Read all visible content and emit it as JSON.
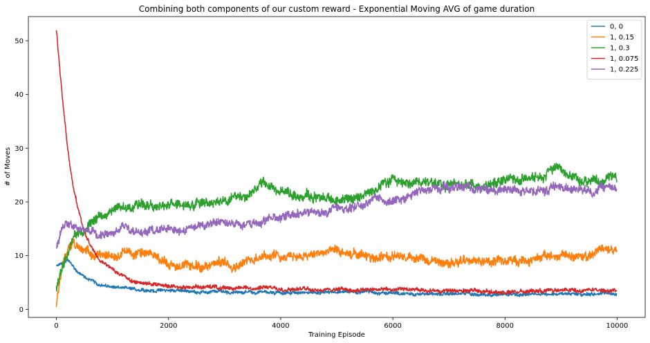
{
  "chart_data": {
    "type": "line",
    "title": "Combining both components of our custom reward - Exponential Moving AVG of game duration",
    "xlabel": "Training Episode",
    "ylabel": "# of Moves",
    "xlim": [
      -500,
      10500
    ],
    "ylim": [
      -1.5,
      54.5
    ],
    "x_ticks": [
      0,
      2000,
      4000,
      6000,
      8000,
      10000
    ],
    "y_ticks": [
      0,
      10,
      20,
      30,
      40,
      50
    ],
    "grid": false,
    "legend_position": "top-right",
    "x": [
      0,
      100,
      200,
      300,
      400,
      500,
      600,
      700,
      800,
      1000,
      1200,
      1500,
      1800,
      2000,
      2500,
      3000,
      3500,
      3700,
      4000,
      4500,
      5000,
      5500,
      5700,
      6000,
      6300,
      6500,
      7000,
      7500,
      8000,
      8500,
      8700,
      8900,
      9200,
      9500,
      9700,
      10000
    ],
    "series": [
      {
        "name": "0, 0",
        "color": "#1f77b4",
        "band": 0.5,
        "values": [
          8.0,
          8.5,
          9.2,
          8.0,
          6.8,
          6.0,
          5.5,
          5.0,
          4.6,
          4.2,
          3.9,
          3.7,
          3.5,
          3.5,
          3.3,
          3.2,
          3.2,
          3.2,
          3.1,
          3.1,
          3.0,
          3.0,
          3.0,
          3.0,
          3.0,
          2.9,
          2.9,
          2.9,
          2.9,
          2.9,
          2.9,
          2.9,
          2.9,
          2.9,
          2.9,
          2.9
        ]
      },
      {
        "name": "1, 0.15",
        "color": "#ff7f0e",
        "band": 1.4,
        "values": [
          1.0,
          8.0,
          11.5,
          12.5,
          11.5,
          11.0,
          10.5,
          10.0,
          10.0,
          10.2,
          10.5,
          10.5,
          9.5,
          8.5,
          8.0,
          8.5,
          9.5,
          10.5,
          10.0,
          10.0,
          10.5,
          9.5,
          10.0,
          9.8,
          9.5,
          9.2,
          9.0,
          9.0,
          9.0,
          9.5,
          10.0,
          10.0,
          10.0,
          9.8,
          11.0,
          11.0
        ]
      },
      {
        "name": "1, 0.3",
        "color": "#2ca02c",
        "band": 1.5,
        "values": [
          4.0,
          8.0,
          11.0,
          13.5,
          15.0,
          14.5,
          16.0,
          17.0,
          17.5,
          18.5,
          19.0,
          19.5,
          19.0,
          19.5,
          19.5,
          20.5,
          21.5,
          23.5,
          21.5,
          21.0,
          20.0,
          21.0,
          22.5,
          24.0,
          23.5,
          24.0,
          23.5,
          23.5,
          23.5,
          24.5,
          25.0,
          27.0,
          25.0,
          24.0,
          23.5,
          24.5
        ]
      },
      {
        "name": "1, 0.075",
        "color": "#d62728",
        "band": 0.6,
        "values": [
          52.0,
          40.0,
          30.0,
          23.0,
          18.0,
          14.5,
          12.0,
          10.5,
          9.0,
          7.5,
          6.0,
          5.0,
          4.6,
          4.5,
          4.3,
          4.1,
          4.0,
          4.0,
          3.9,
          3.8,
          3.7,
          3.6,
          3.6,
          3.5,
          3.5,
          3.5,
          3.4,
          3.4,
          3.3,
          3.3,
          3.3,
          3.4,
          3.6,
          3.5,
          3.4,
          3.4
        ]
      },
      {
        "name": "1, 0.225",
        "color": "#9467bd",
        "band": 1.3,
        "values": [
          11.0,
          15.5,
          16.5,
          15.5,
          15.0,
          14.5,
          14.0,
          14.0,
          14.0,
          15.0,
          15.5,
          14.0,
          14.5,
          14.5,
          15.5,
          16.0,
          16.5,
          17.0,
          17.5,
          18.0,
          19.0,
          19.5,
          21.0,
          20.0,
          21.0,
          22.0,
          22.5,
          22.5,
          22.0,
          22.5,
          22.5,
          22.5,
          22.5,
          22.5,
          22.5,
          22.5
        ]
      }
    ]
  }
}
